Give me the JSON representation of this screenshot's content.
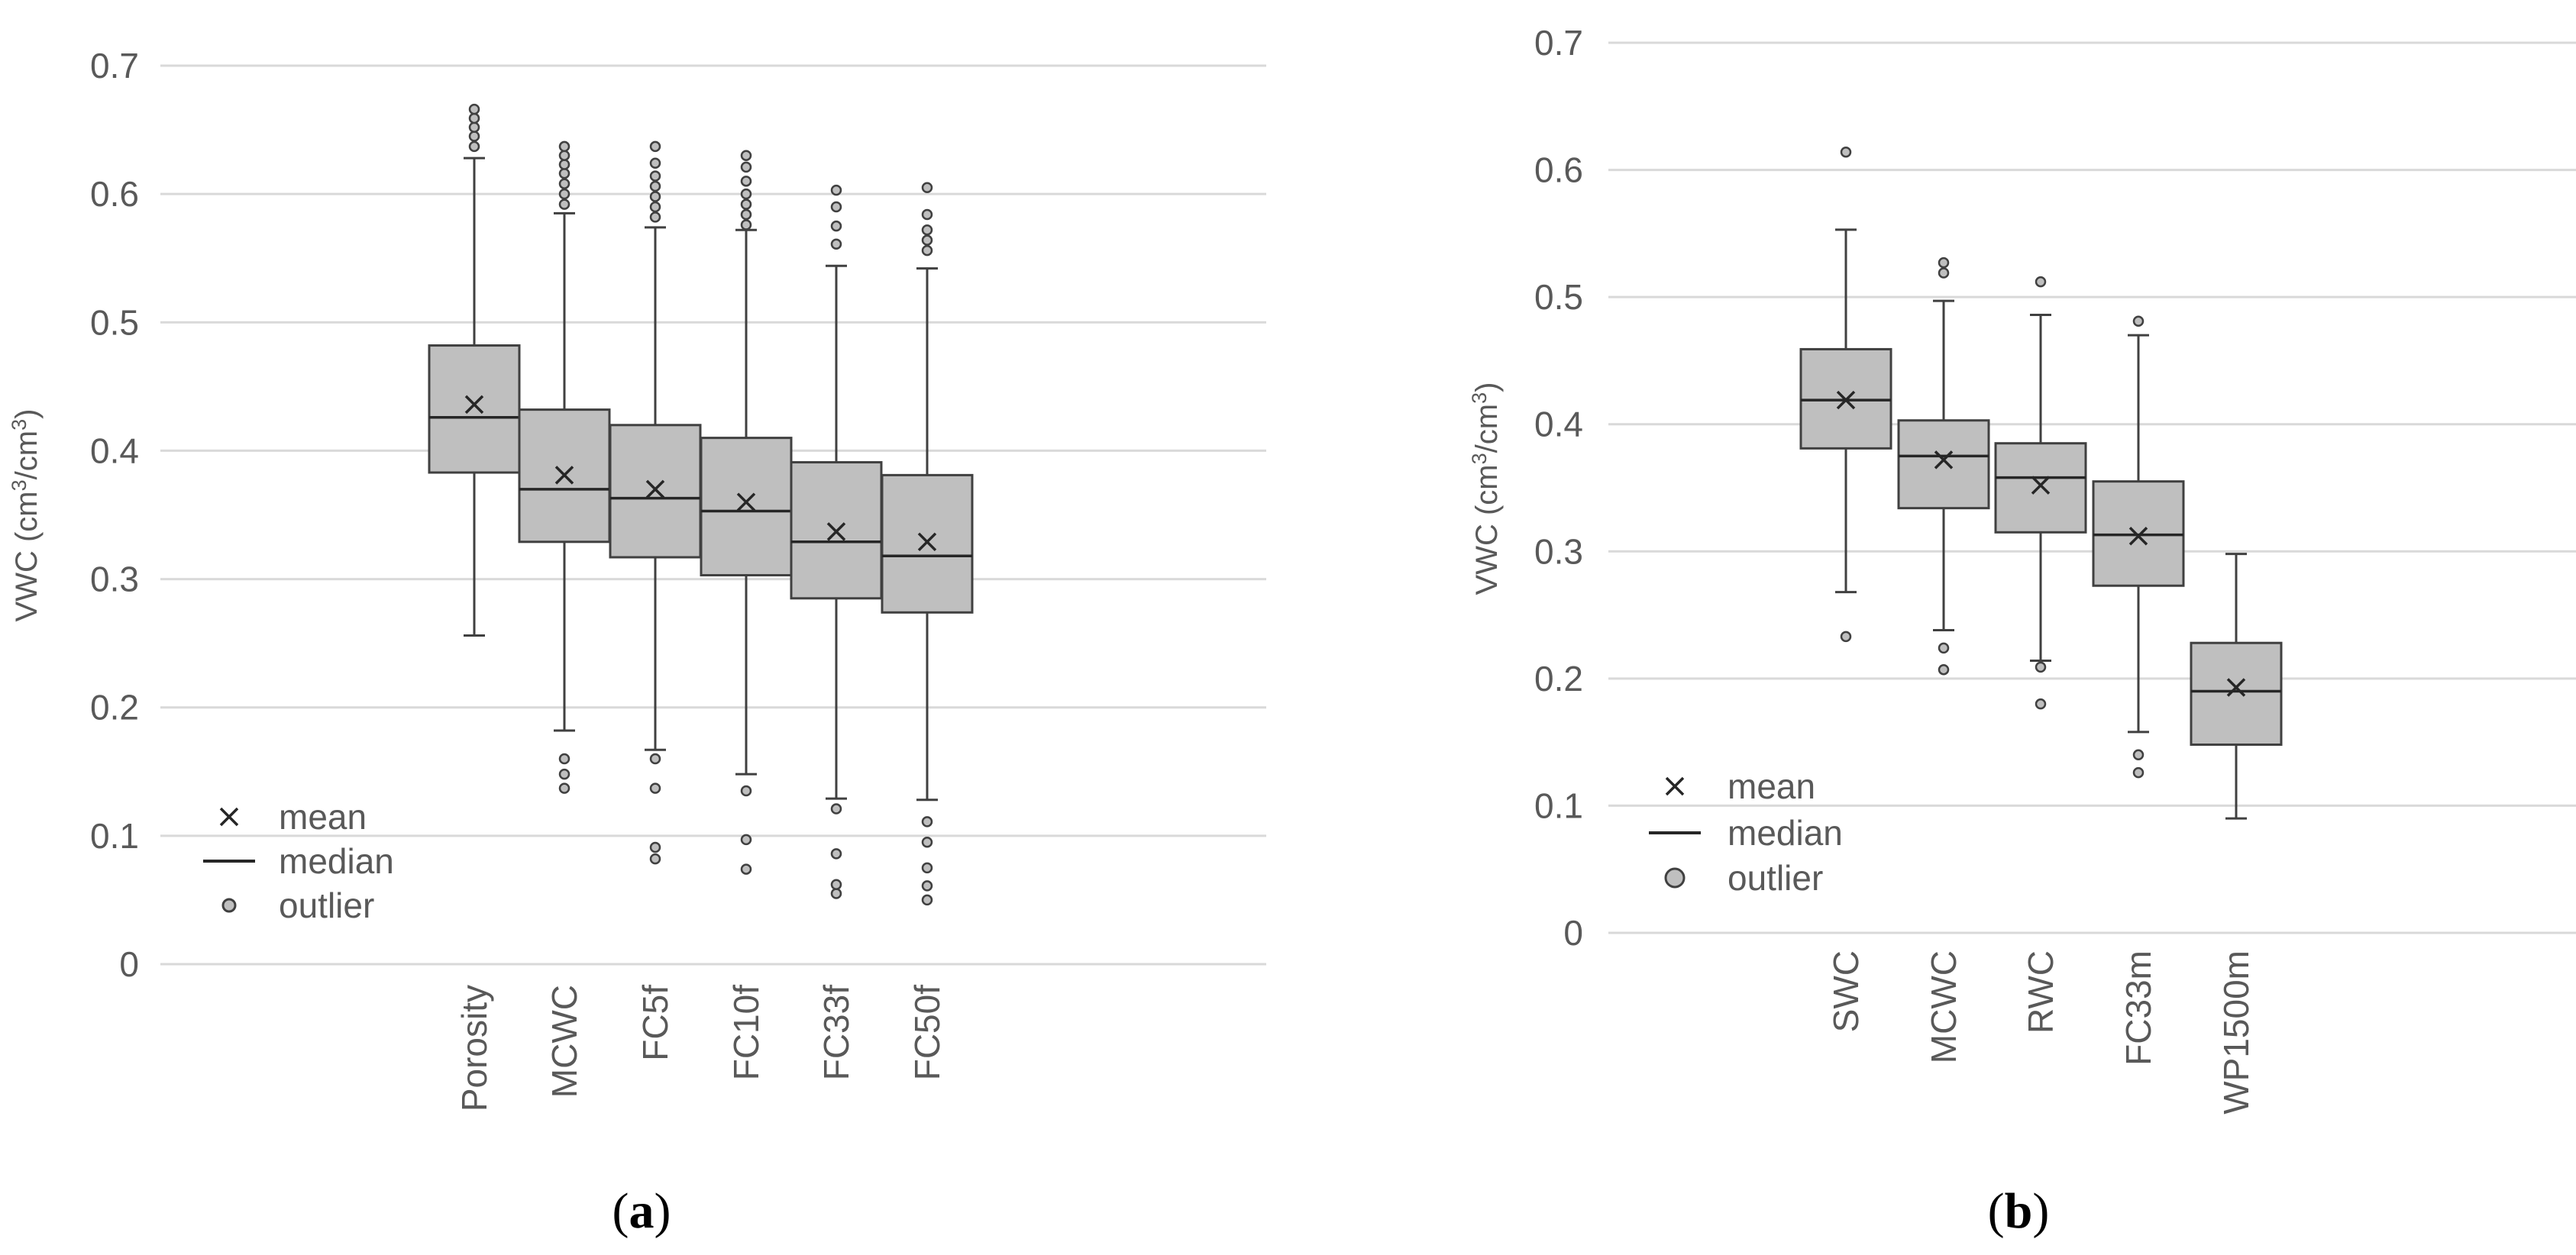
{
  "chart_data": [
    {
      "type": "box",
      "panel": "a",
      "panel_label": [
        "(",
        "a",
        ")"
      ],
      "ylabel": [
        "VWC (cm",
        "3",
        "/cm",
        "3",
        ")"
      ],
      "ylim": [
        0,
        0.7
      ],
      "yticks": [
        0,
        0.1,
        0.2,
        0.3,
        0.4,
        0.5,
        0.6,
        0.7
      ],
      "ytick_labels": [
        "0",
        "0.1",
        "0.2",
        "0.3",
        "0.4",
        "0.5",
        "0.6",
        "0.7"
      ],
      "grid": true,
      "legend": {
        "placement": "bottom-left",
        "items": [
          "mean",
          "median",
          "outlier"
        ]
      },
      "categories": [
        "Porosity",
        "MCWC",
        "FC5f",
        "FC10f",
        "FC33f",
        "FC50f"
      ],
      "boxes": [
        {
          "name": "Porosity",
          "min": 0.256,
          "q1": 0.383,
          "median": 0.426,
          "q3": 0.482,
          "max": 0.628,
          "mean": 0.436,
          "outliers": [
            0.637,
            0.645,
            0.652,
            0.659,
            0.666
          ]
        },
        {
          "name": "MCWC",
          "min": 0.182,
          "q1": 0.329,
          "median": 0.37,
          "q3": 0.432,
          "max": 0.585,
          "mean": 0.381,
          "outliers": [
            0.137,
            0.148,
            0.16,
            0.592,
            0.6,
            0.608,
            0.616,
            0.623,
            0.63,
            0.637
          ]
        },
        {
          "name": "FC5f",
          "min": 0.167,
          "q1": 0.317,
          "median": 0.363,
          "q3": 0.42,
          "max": 0.574,
          "mean": 0.37,
          "outliers": [
            0.082,
            0.091,
            0.137,
            0.16,
            0.582,
            0.59,
            0.598,
            0.606,
            0.614,
            0.624,
            0.637
          ]
        },
        {
          "name": "FC10f",
          "min": 0.148,
          "q1": 0.303,
          "median": 0.353,
          "q3": 0.41,
          "max": 0.572,
          "mean": 0.36,
          "outliers": [
            0.074,
            0.097,
            0.135,
            0.576,
            0.584,
            0.592,
            0.6,
            0.61,
            0.621,
            0.63
          ]
        },
        {
          "name": "FC33f",
          "min": 0.129,
          "q1": 0.285,
          "median": 0.329,
          "q3": 0.391,
          "max": 0.544,
          "mean": 0.337,
          "outliers": [
            0.055,
            0.062,
            0.086,
            0.121,
            0.561,
            0.575,
            0.59,
            0.603
          ]
        },
        {
          "name": "FC50f",
          "min": 0.128,
          "q1": 0.274,
          "median": 0.318,
          "q3": 0.381,
          "max": 0.542,
          "mean": 0.329,
          "outliers": [
            0.05,
            0.061,
            0.075,
            0.095,
            0.111,
            0.556,
            0.564,
            0.572,
            0.584,
            0.605
          ]
        }
      ]
    },
    {
      "type": "box",
      "panel": "b",
      "panel_label": [
        "(",
        "b",
        ")"
      ],
      "ylabel": [
        "VWC (cm",
        "3",
        "/cm",
        "3",
        ")"
      ],
      "ylim": [
        0,
        0.7
      ],
      "yticks": [
        0,
        0.1,
        0.2,
        0.3,
        0.4,
        0.5,
        0.6,
        0.7
      ],
      "ytick_labels": [
        "0",
        "0.1",
        "0.2",
        "0.3",
        "0.4",
        "0.5",
        "0.6",
        "0.7"
      ],
      "grid": true,
      "legend": {
        "placement": "bottom-left",
        "items": [
          "mean",
          "median",
          "outlier"
        ]
      },
      "categories": [
        "SWC",
        "MCWC",
        "RWC",
        "FC33m",
        "WP1500m"
      ],
      "boxes": [
        {
          "name": "SWC",
          "min": 0.268,
          "q1": 0.381,
          "median": 0.419,
          "q3": 0.459,
          "max": 0.553,
          "mean": 0.419,
          "outliers": [
            0.233,
            0.614
          ]
        },
        {
          "name": "MCWC",
          "min": 0.238,
          "q1": 0.334,
          "median": 0.375,
          "q3": 0.403,
          "max": 0.497,
          "mean": 0.372,
          "outliers": [
            0.207,
            0.224,
            0.519,
            0.527
          ]
        },
        {
          "name": "RWC",
          "min": 0.214,
          "q1": 0.315,
          "median": 0.358,
          "q3": 0.385,
          "max": 0.486,
          "mean": 0.352,
          "outliers": [
            0.18,
            0.209,
            0.512
          ]
        },
        {
          "name": "FC33m",
          "min": 0.158,
          "q1": 0.273,
          "median": 0.313,
          "q3": 0.355,
          "max": 0.47,
          "mean": 0.312,
          "outliers": [
            0.126,
            0.14,
            0.481
          ]
        },
        {
          "name": "WP1500m",
          "min": 0.09,
          "q1": 0.148,
          "median": 0.19,
          "q3": 0.228,
          "max": 0.298,
          "mean": 0.193,
          "outliers": []
        }
      ]
    }
  ]
}
